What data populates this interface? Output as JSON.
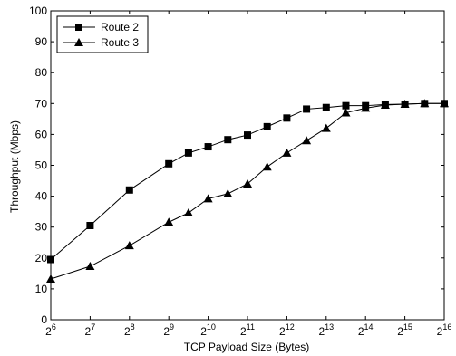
{
  "chart_data": {
    "type": "line",
    "title": "",
    "xlabel": "TCP Payload Size (Bytes)",
    "ylabel": "Throughput (Mbps)",
    "x_scale": "log2",
    "xlim": [
      6,
      16
    ],
    "ylim": [
      0,
      100
    ],
    "x_ticks": [
      {
        "base": "2",
        "exp": "6"
      },
      {
        "base": "2",
        "exp": "7"
      },
      {
        "base": "2",
        "exp": "8"
      },
      {
        "base": "2",
        "exp": "9"
      },
      {
        "base": "2",
        "exp": "10"
      },
      {
        "base": "2",
        "exp": "11"
      },
      {
        "base": "2",
        "exp": "12"
      },
      {
        "base": "2",
        "exp": "13"
      },
      {
        "base": "2",
        "exp": "14"
      },
      {
        "base": "2",
        "exp": "15"
      },
      {
        "base": "2",
        "exp": "16"
      }
    ],
    "y_ticks": [
      "0",
      "10",
      "20",
      "30",
      "40",
      "50",
      "60",
      "70",
      "80",
      "90",
      "100"
    ],
    "grid": false,
    "legend_position": "top-left",
    "series": [
      {
        "name": "Route 2",
        "marker": "square",
        "color": "#000000",
        "points": [
          [
            6,
            19.5
          ],
          [
            7,
            30.5
          ],
          [
            8,
            42
          ],
          [
            9,
            50.5
          ],
          [
            9.5,
            54
          ],
          [
            10,
            56
          ],
          [
            10.5,
            58.3
          ],
          [
            11,
            59.8
          ],
          [
            11.5,
            62.5
          ],
          [
            12,
            65.3
          ],
          [
            12.5,
            68.2
          ],
          [
            13,
            68.7
          ],
          [
            13.5,
            69.3
          ],
          [
            14,
            69.3
          ],
          [
            14.5,
            69.7
          ],
          [
            15,
            69.8
          ],
          [
            15.5,
            70
          ],
          [
            16,
            70
          ]
        ]
      },
      {
        "name": "Route 3",
        "marker": "triangle",
        "color": "#000000",
        "points": [
          [
            6,
            13.2
          ],
          [
            7,
            17.3
          ],
          [
            8,
            24
          ],
          [
            9,
            31.6
          ],
          [
            9.5,
            34.6
          ],
          [
            10,
            39.2
          ],
          [
            10.5,
            40.8
          ],
          [
            11,
            44
          ],
          [
            11.5,
            49.5
          ],
          [
            12,
            54
          ],
          [
            12.5,
            58
          ],
          [
            13,
            62
          ],
          [
            13.5,
            67
          ],
          [
            14,
            68.5
          ],
          [
            14.5,
            69.5
          ],
          [
            15,
            69.8
          ],
          [
            15.5,
            70
          ],
          [
            16,
            70
          ]
        ]
      }
    ]
  }
}
